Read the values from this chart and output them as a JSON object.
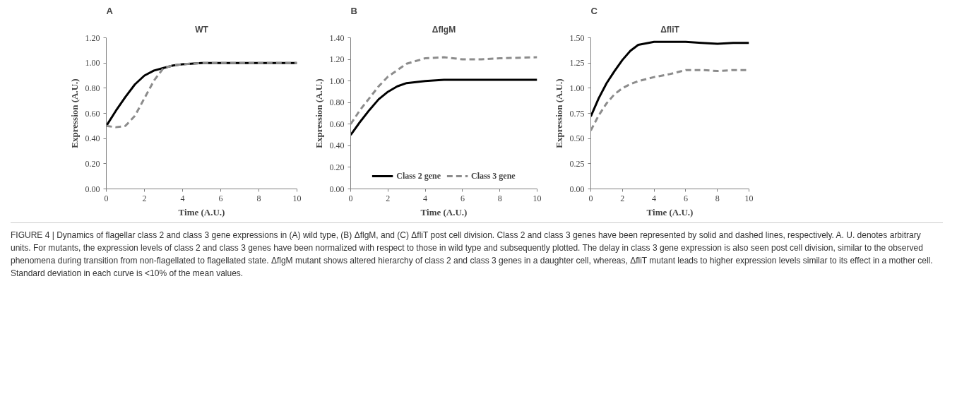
{
  "chart_data": [
    {
      "type": "line",
      "title": "A",
      "subtitle": "WT",
      "xlabel": "Time (A.U.)",
      "ylabel": "Expression (A.U.)",
      "xlim": [
        0,
        10
      ],
      "xticks": [
        0,
        2,
        4,
        6,
        8,
        10
      ],
      "ylim": [
        0,
        1.2
      ],
      "yticks": [
        {
          "value": 0,
          "label": "0.00"
        },
        {
          "value": 0.2,
          "label": "0.20"
        },
        {
          "value": 0.4,
          "label": "0.40"
        },
        {
          "value": 0.6,
          "label": "0.60"
        },
        {
          "value": 0.8,
          "label": "0.80"
        },
        {
          "value": 1,
          "label": "1.00"
        },
        {
          "value": 1.2,
          "label": "1.20"
        }
      ],
      "grid": false,
      "marker": "none",
      "x": [
        0,
        0.5,
        1,
        1.5,
        2,
        2.5,
        3,
        3.5,
        4,
        5,
        6,
        8,
        10
      ],
      "series": [
        {
          "color": "#000000",
          "line_style": "solid",
          "values": [
            0.5,
            0.62,
            0.73,
            0.83,
            0.9,
            0.94,
            0.96,
            0.98,
            0.99,
            1.0,
            1.0,
            1.0,
            1.0
          ]
        },
        {
          "color": "#8c8c8c",
          "line_style": "dashed",
          "values": [
            0.5,
            0.49,
            0.5,
            0.58,
            0.72,
            0.86,
            0.96,
            0.98,
            0.99,
            1.0,
            1.0,
            1.0,
            1.0
          ]
        }
      ],
      "annotations": [
        "FIGURE 4 | Dynamics of flagellar class 2 and class 3 gene expressions in (A) wild type, (B) ΔflgM, and (C) ΔfliT post cell division. Class 2 and class 3 genes have been represented by solid and dashed lines, respectively. A. U. denotes arbitrary units. For mutants, the expression levels of class 2 and class 3 genes have been normalized with respect to those in wild type and subsequently plotted. The delay in class 3 gene expression is also seen post cell division, similar to the observed phenomena during transition from non-flagellated to flagellated state. ΔflgM mutant shows altered hierarchy of class 2 and class 3 genes in a daughter cell, whereas, ΔfliT mutant leads to higher expression levels similar to its effect in a mother cell. Standard deviation in each curve is <10% of the mean values."
      ]
    },
    {
      "type": "line",
      "title": "B",
      "subtitle": "ΔflgM",
      "xlabel": "Time (A.U.)",
      "ylabel": "Expression (A.U.)",
      "xlim": [
        0,
        10
      ],
      "xticks": [
        0,
        2,
        4,
        6,
        8,
        10
      ],
      "ylim": [
        0,
        1.4
      ],
      "yticks": [
        {
          "value": 0,
          "label": "0.00"
        },
        {
          "value": 0.2,
          "label": "0.20"
        },
        {
          "value": 0.4,
          "label": "0.40"
        },
        {
          "value": 0.6,
          "label": "0.60"
        },
        {
          "value": 0.8,
          "label": "0.80"
        },
        {
          "value": 1,
          "label": "1.00"
        },
        {
          "value": 1.2,
          "label": "1.20"
        },
        {
          "value": 1.4,
          "label": "1.40"
        }
      ],
      "grid": false,
      "marker": "none",
      "legend": "bottom",
      "x": [
        0,
        0.5,
        1,
        1.5,
        2,
        2.5,
        3,
        4,
        5,
        6,
        7,
        8,
        10
      ],
      "series": [
        {
          "name": "Class 2 gene",
          "color": "#000000",
          "line_style": "solid",
          "values": [
            0.5,
            0.62,
            0.73,
            0.83,
            0.9,
            0.95,
            0.98,
            1.0,
            1.01,
            1.01,
            1.01,
            1.01,
            1.01
          ]
        },
        {
          "name": "Class 3 gene",
          "color": "#8c8c8c",
          "line_style": "dashed",
          "values": [
            0.6,
            0.73,
            0.84,
            0.95,
            1.04,
            1.1,
            1.16,
            1.21,
            1.22,
            1.2,
            1.2,
            1.21,
            1.22
          ]
        }
      ]
    },
    {
      "type": "line",
      "title": "C",
      "subtitle": "ΔfliT",
      "xlabel": "Time (A.U.)",
      "ylabel": "Expression (A.U.)",
      "xlim": [
        0,
        10
      ],
      "xticks": [
        0,
        2,
        4,
        6,
        8,
        10
      ],
      "ylim": [
        0,
        1.5
      ],
      "yticks": [
        {
          "value": 0,
          "label": "0.00"
        },
        {
          "value": 0.25,
          "label": "0.25"
        },
        {
          "value": 0.5,
          "label": "0.50"
        },
        {
          "value": 0.75,
          "label": "0.75"
        },
        {
          "value": 1,
          "label": "1.00"
        },
        {
          "value": 1.25,
          "label": "1.25"
        },
        {
          "value": 1.5,
          "label": "1.50"
        }
      ],
      "grid": false,
      "marker": "none",
      "x": [
        0,
        0.5,
        1,
        1.5,
        2,
        2.5,
        3,
        4,
        5,
        6,
        7,
        8,
        9,
        10
      ],
      "series": [
        {
          "color": "#000000",
          "line_style": "solid",
          "values": [
            0.72,
            0.9,
            1.05,
            1.17,
            1.28,
            1.37,
            1.43,
            1.46,
            1.46,
            1.46,
            1.45,
            1.44,
            1.45,
            1.45
          ]
        },
        {
          "color": "#8c8c8c",
          "line_style": "dashed",
          "values": [
            0.58,
            0.73,
            0.85,
            0.94,
            1.0,
            1.04,
            1.07,
            1.11,
            1.14,
            1.18,
            1.18,
            1.17,
            1.18,
            1.18
          ]
        }
      ]
    }
  ]
}
